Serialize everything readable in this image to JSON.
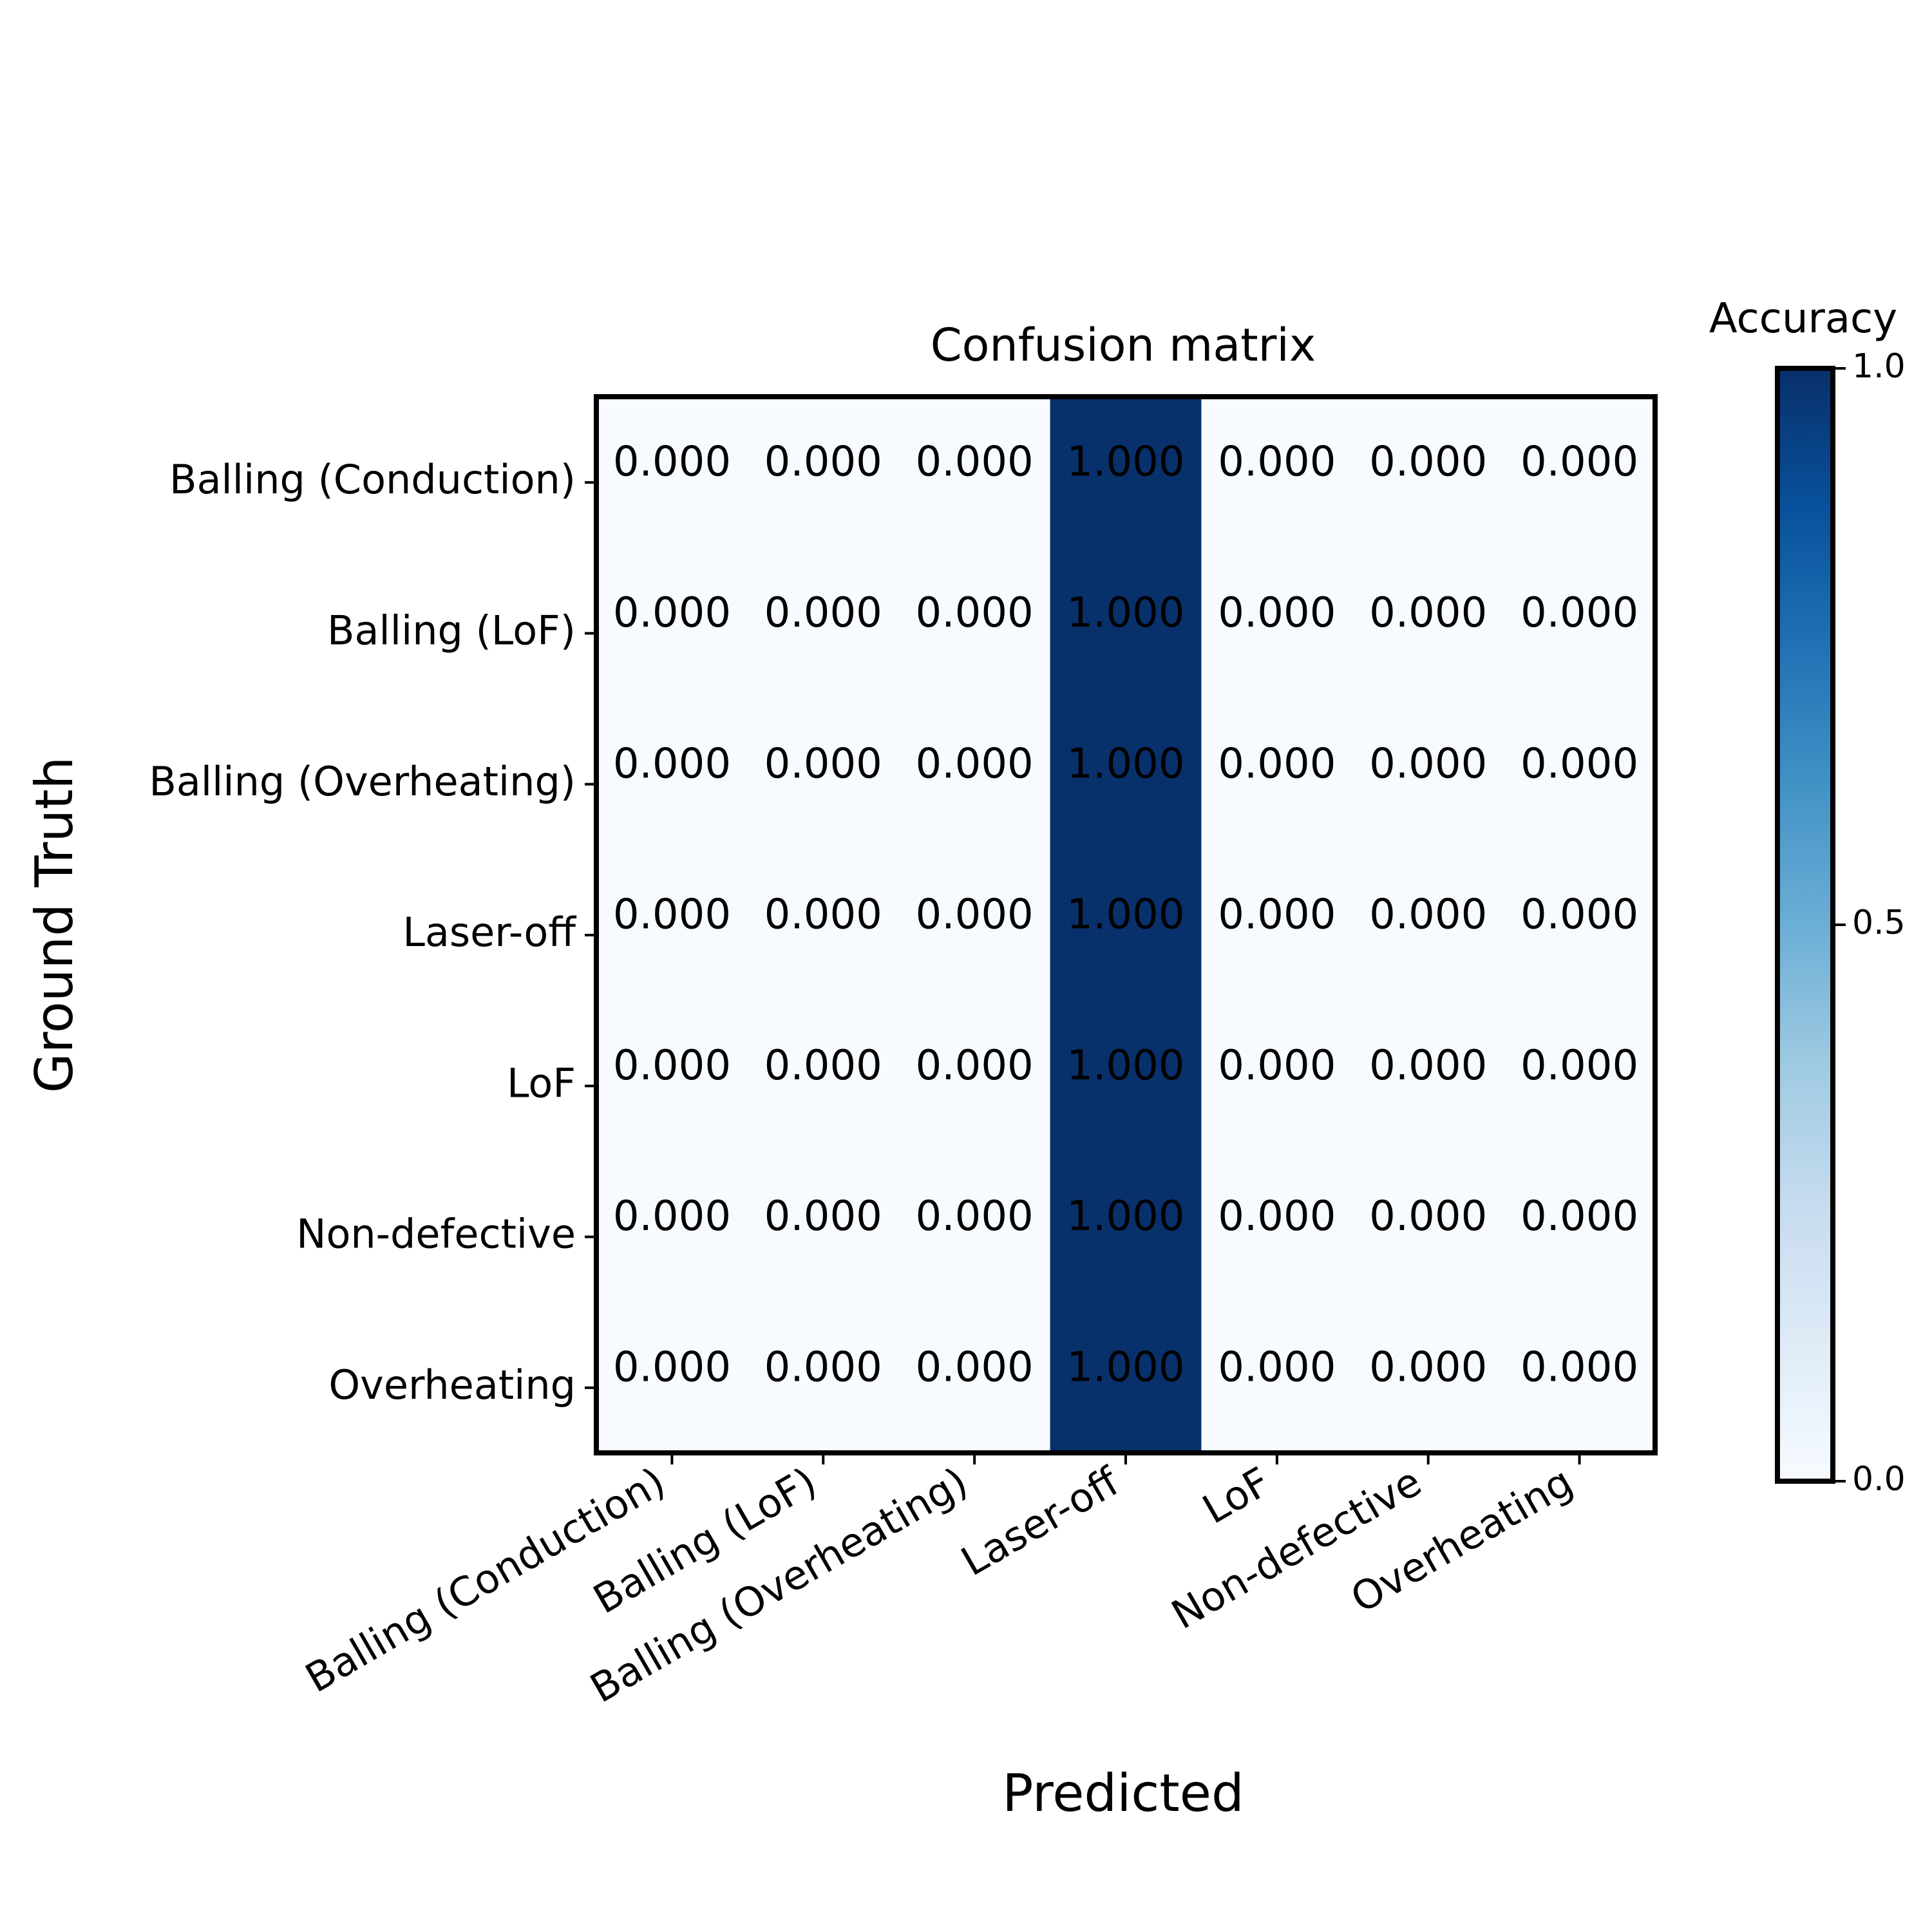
{
  "chart_data": {
    "type": "heatmap",
    "title": "Confusion matrix",
    "xlabel": "Predicted",
    "ylabel": "Ground Truth",
    "x_categories": [
      "Balling (Conduction)",
      "Balling (LoF)",
      "Balling (Overheating)",
      "Laser-off",
      "LoF",
      "Non-defective",
      "Overheating"
    ],
    "y_categories": [
      "Balling (Conduction)",
      "Balling (LoF)",
      "Balling (Overheating)",
      "Laser-off",
      "LoF",
      "Non-defective",
      "Overheating"
    ],
    "values": [
      [
        0.0,
        0.0,
        0.0,
        1.0,
        0.0,
        0.0,
        0.0
      ],
      [
        0.0,
        0.0,
        0.0,
        1.0,
        0.0,
        0.0,
        0.0
      ],
      [
        0.0,
        0.0,
        0.0,
        1.0,
        0.0,
        0.0,
        0.0
      ],
      [
        0.0,
        0.0,
        0.0,
        1.0,
        0.0,
        0.0,
        0.0
      ],
      [
        0.0,
        0.0,
        0.0,
        1.0,
        0.0,
        0.0,
        0.0
      ],
      [
        0.0,
        0.0,
        0.0,
        1.0,
        0.0,
        0.0,
        0.0
      ],
      [
        0.0,
        0.0,
        0.0,
        1.0,
        0.0,
        0.0,
        0.0
      ]
    ],
    "cell_labels": [
      [
        "0.000",
        "0.000",
        "0.000",
        "1.000",
        "0.000",
        "0.000",
        "0.000"
      ],
      [
        "0.000",
        "0.000",
        "0.000",
        "1.000",
        "0.000",
        "0.000",
        "0.000"
      ],
      [
        "0.000",
        "0.000",
        "0.000",
        "1.000",
        "0.000",
        "0.000",
        "0.000"
      ],
      [
        "0.000",
        "0.000",
        "0.000",
        "1.000",
        "0.000",
        "0.000",
        "0.000"
      ],
      [
        "0.000",
        "0.000",
        "0.000",
        "1.000",
        "0.000",
        "0.000",
        "0.000"
      ],
      [
        "0.000",
        "0.000",
        "0.000",
        "1.000",
        "0.000",
        "0.000",
        "0.000"
      ],
      [
        "0.000",
        "0.000",
        "0.000",
        "1.000",
        "0.000",
        "0.000",
        "0.000"
      ]
    ],
    "colorbar": {
      "title": "Accuracy",
      "range": [
        0,
        1
      ],
      "ticks": [
        0.0,
        0.5,
        1.0
      ],
      "tick_labels": [
        "0.0",
        "0.5",
        "1.0"
      ],
      "colormap": "Blues"
    },
    "colors": {
      "low": "#f7fbff",
      "high": "#08306b",
      "text_dark": "#000000",
      "text_light": "#ffffff"
    }
  }
}
